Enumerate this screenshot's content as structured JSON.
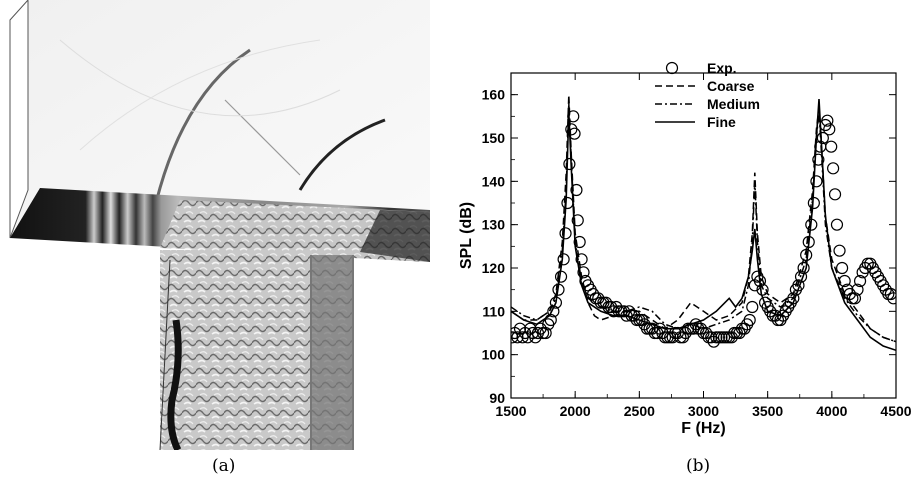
{
  "captions": {
    "a": "(a)",
    "b": "(b)"
  },
  "chart_data": {
    "type": "line",
    "xlabel": "F (Hz)",
    "ylabel": "SPL (dB)",
    "xlim": [
      1500,
      4500
    ],
    "ylim": [
      90,
      165
    ],
    "xticks": [
      1500,
      2000,
      2500,
      3000,
      3500,
      4000,
      4500
    ],
    "yticks": [
      90,
      100,
      110,
      120,
      130,
      140,
      150,
      160
    ],
    "legend_position": "top-center",
    "series": [
      {
        "name": "Exp.",
        "style": "markers",
        "marker": "open-circle",
        "points": [
          [
            1510,
            104
          ],
          [
            1530,
            105
          ],
          [
            1550,
            104
          ],
          [
            1570,
            106
          ],
          [
            1590,
            104
          ],
          [
            1610,
            105
          ],
          [
            1630,
            104
          ],
          [
            1650,
            106
          ],
          [
            1670,
            105
          ],
          [
            1690,
            104
          ],
          [
            1710,
            105
          ],
          [
            1730,
            106
          ],
          [
            1750,
            105
          ],
          [
            1770,
            105
          ],
          [
            1790,
            107
          ],
          [
            1810,
            108
          ],
          [
            1830,
            110
          ],
          [
            1850,
            112
          ],
          [
            1870,
            115
          ],
          [
            1890,
            118
          ],
          [
            1910,
            122
          ],
          [
            1925,
            128
          ],
          [
            1940,
            135
          ],
          [
            1955,
            144
          ],
          [
            1970,
            152
          ],
          [
            1985,
            155
          ],
          [
            1995,
            151
          ],
          [
            2010,
            138
          ],
          [
            2020,
            131
          ],
          [
            2035,
            126
          ],
          [
            2050,
            122
          ],
          [
            2065,
            119
          ],
          [
            2080,
            117
          ],
          [
            2100,
            116
          ],
          [
            2120,
            115
          ],
          [
            2140,
            114
          ],
          [
            2160,
            113
          ],
          [
            2180,
            113
          ],
          [
            2200,
            112
          ],
          [
            2220,
            112
          ],
          [
            2240,
            112
          ],
          [
            2260,
            111
          ],
          [
            2280,
            111
          ],
          [
            2300,
            110
          ],
          [
            2320,
            111
          ],
          [
            2340,
            110
          ],
          [
            2360,
            110
          ],
          [
            2380,
            110
          ],
          [
            2400,
            109
          ],
          [
            2420,
            110
          ],
          [
            2440,
            109
          ],
          [
            2460,
            109
          ],
          [
            2480,
            108
          ],
          [
            2500,
            108
          ],
          [
            2520,
            108
          ],
          [
            2540,
            107
          ],
          [
            2560,
            106
          ],
          [
            2580,
            106
          ],
          [
            2600,
            106
          ],
          [
            2620,
            105
          ],
          [
            2640,
            105
          ],
          [
            2660,
            106
          ],
          [
            2680,
            105
          ],
          [
            2700,
            104
          ],
          [
            2720,
            104
          ],
          [
            2740,
            104
          ],
          [
            2760,
            104
          ],
          [
            2780,
            105
          ],
          [
            2800,
            105
          ],
          [
            2820,
            104
          ],
          [
            2840,
            104
          ],
          [
            2860,
            105
          ],
          [
            2880,
            106
          ],
          [
            2900,
            106
          ],
          [
            2920,
            106
          ],
          [
            2940,
            107
          ],
          [
            2960,
            106
          ],
          [
            2980,
            106
          ],
          [
            3000,
            105
          ],
          [
            3020,
            105
          ],
          [
            3040,
            104
          ],
          [
            3060,
            104
          ],
          [
            3080,
            103
          ],
          [
            3100,
            104
          ],
          [
            3120,
            104
          ],
          [
            3140,
            104
          ],
          [
            3160,
            104
          ],
          [
            3180,
            104
          ],
          [
            3200,
            104
          ],
          [
            3220,
            104
          ],
          [
            3240,
            105
          ],
          [
            3260,
            105
          ],
          [
            3280,
            105
          ],
          [
            3300,
            106
          ],
          [
            3320,
            106
          ],
          [
            3340,
            107
          ],
          [
            3360,
            108
          ],
          [
            3380,
            111
          ],
          [
            3400,
            116
          ],
          [
            3420,
            118
          ],
          [
            3440,
            117
          ],
          [
            3460,
            115
          ],
          [
            3480,
            112
          ],
          [
            3500,
            111
          ],
          [
            3520,
            110
          ],
          [
            3540,
            109
          ],
          [
            3560,
            109
          ],
          [
            3580,
            108
          ],
          [
            3600,
            108
          ],
          [
            3620,
            109
          ],
          [
            3640,
            110
          ],
          [
            3660,
            111
          ],
          [
            3680,
            112
          ],
          [
            3700,
            113
          ],
          [
            3720,
            115
          ],
          [
            3740,
            116
          ],
          [
            3760,
            118
          ],
          [
            3780,
            120
          ],
          [
            3800,
            123
          ],
          [
            3820,
            126
          ],
          [
            3840,
            130
          ],
          [
            3860,
            135
          ],
          [
            3880,
            140
          ],
          [
            3895,
            145
          ],
          [
            3910,
            148
          ],
          [
            3930,
            150
          ],
          [
            3950,
            153
          ],
          [
            3965,
            154
          ],
          [
            3980,
            152
          ],
          [
            3995,
            148
          ],
          [
            4010,
            143
          ],
          [
            4025,
            137
          ],
          [
            4040,
            130
          ],
          [
            4060,
            124
          ],
          [
            4080,
            120
          ],
          [
            4100,
            117
          ],
          [
            4120,
            115
          ],
          [
            4140,
            114
          ],
          [
            4160,
            113
          ],
          [
            4180,
            113
          ],
          [
            4200,
            115
          ],
          [
            4220,
            117
          ],
          [
            4240,
            119
          ],
          [
            4260,
            120
          ],
          [
            4280,
            121
          ],
          [
            4300,
            121
          ],
          [
            4320,
            120
          ],
          [
            4340,
            119
          ],
          [
            4360,
            118
          ],
          [
            4380,
            117
          ],
          [
            4400,
            116
          ],
          [
            4420,
            115
          ],
          [
            4440,
            114
          ],
          [
            4460,
            114
          ],
          [
            4480,
            113
          ]
        ]
      },
      {
        "name": "Coarse",
        "style": "dashed",
        "points": [
          [
            1500,
            110
          ],
          [
            1600,
            108
          ],
          [
            1700,
            108
          ],
          [
            1800,
            110
          ],
          [
            1850,
            114
          ],
          [
            1900,
            126
          ],
          [
            1930,
            142
          ],
          [
            1950,
            160
          ],
          [
            1970,
            146
          ],
          [
            2000,
            128
          ],
          [
            2050,
            118
          ],
          [
            2100,
            112
          ],
          [
            2150,
            109
          ],
          [
            2200,
            108
          ],
          [
            2300,
            109
          ],
          [
            2400,
            110
          ],
          [
            2500,
            110
          ],
          [
            2600,
            108
          ],
          [
            2700,
            106
          ],
          [
            2800,
            108
          ],
          [
            2900,
            112
          ],
          [
            3000,
            110
          ],
          [
            3100,
            108
          ],
          [
            3200,
            109
          ],
          [
            3300,
            112
          ],
          [
            3350,
            118
          ],
          [
            3380,
            128
          ],
          [
            3400,
            142
          ],
          [
            3420,
            128
          ],
          [
            3450,
            118
          ],
          [
            3500,
            114
          ],
          [
            3600,
            112
          ],
          [
            3700,
            114
          ],
          [
            3800,
            124
          ],
          [
            3850,
            138
          ],
          [
            3880,
            152
          ],
          [
            3900,
            157
          ],
          [
            3920,
            148
          ],
          [
            3950,
            132
          ],
          [
            4000,
            122
          ],
          [
            4100,
            114
          ],
          [
            4200,
            110
          ],
          [
            4300,
            106
          ],
          [
            4400,
            104
          ],
          [
            4500,
            103
          ]
        ]
      },
      {
        "name": "Medium",
        "style": "dash-dot",
        "points": [
          [
            1500,
            111
          ],
          [
            1600,
            109
          ],
          [
            1700,
            108
          ],
          [
            1800,
            110
          ],
          [
            1850,
            113
          ],
          [
            1900,
            124
          ],
          [
            1930,
            138
          ],
          [
            1950,
            158
          ],
          [
            1970,
            145
          ],
          [
            2000,
            126
          ],
          [
            2050,
            117
          ],
          [
            2100,
            113
          ],
          [
            2200,
            111
          ],
          [
            2300,
            110
          ],
          [
            2400,
            110
          ],
          [
            2500,
            111
          ],
          [
            2600,
            110
          ],
          [
            2700,
            107
          ],
          [
            2800,
            106
          ],
          [
            2900,
            107
          ],
          [
            3000,
            106
          ],
          [
            3100,
            107
          ],
          [
            3200,
            108
          ],
          [
            3300,
            110
          ],
          [
            3350,
            116
          ],
          [
            3380,
            126
          ],
          [
            3400,
            140
          ],
          [
            3420,
            126
          ],
          [
            3450,
            116
          ],
          [
            3500,
            113
          ],
          [
            3600,
            111
          ],
          [
            3700,
            113
          ],
          [
            3800,
            122
          ],
          [
            3850,
            136
          ],
          [
            3880,
            150
          ],
          [
            3900,
            156
          ],
          [
            3920,
            146
          ],
          [
            3950,
            130
          ],
          [
            4000,
            120
          ],
          [
            4100,
            113
          ],
          [
            4200,
            109
          ],
          [
            4300,
            106
          ],
          [
            4400,
            104
          ],
          [
            4500,
            103
          ]
        ]
      },
      {
        "name": "Fine",
        "style": "solid",
        "points": [
          [
            1500,
            110
          ],
          [
            1600,
            108
          ],
          [
            1700,
            107
          ],
          [
            1800,
            109
          ],
          [
            1850,
            112
          ],
          [
            1900,
            122
          ],
          [
            1930,
            136
          ],
          [
            1950,
            156
          ],
          [
            1970,
            143
          ],
          [
            2000,
            125
          ],
          [
            2050,
            116
          ],
          [
            2100,
            112
          ],
          [
            2200,
            110
          ],
          [
            2300,
            109
          ],
          [
            2400,
            109
          ],
          [
            2500,
            108
          ],
          [
            2600,
            107
          ],
          [
            2700,
            106
          ],
          [
            2800,
            106
          ],
          [
            2900,
            107
          ],
          [
            3000,
            108
          ],
          [
            3100,
            110
          ],
          [
            3200,
            113
          ],
          [
            3250,
            111
          ],
          [
            3300,
            113
          ],
          [
            3350,
            118
          ],
          [
            3380,
            124
          ],
          [
            3400,
            129
          ],
          [
            3420,
            122
          ],
          [
            3450,
            114
          ],
          [
            3500,
            110
          ],
          [
            3600,
            109
          ],
          [
            3700,
            112
          ],
          [
            3800,
            120
          ],
          [
            3850,
            134
          ],
          [
            3880,
            150
          ],
          [
            3900,
            159
          ],
          [
            3920,
            148
          ],
          [
            3950,
            132
          ],
          [
            4000,
            120
          ],
          [
            4100,
            112
          ],
          [
            4200,
            108
          ],
          [
            4300,
            104
          ],
          [
            4400,
            102
          ],
          [
            4500,
            101
          ]
        ]
      }
    ]
  }
}
